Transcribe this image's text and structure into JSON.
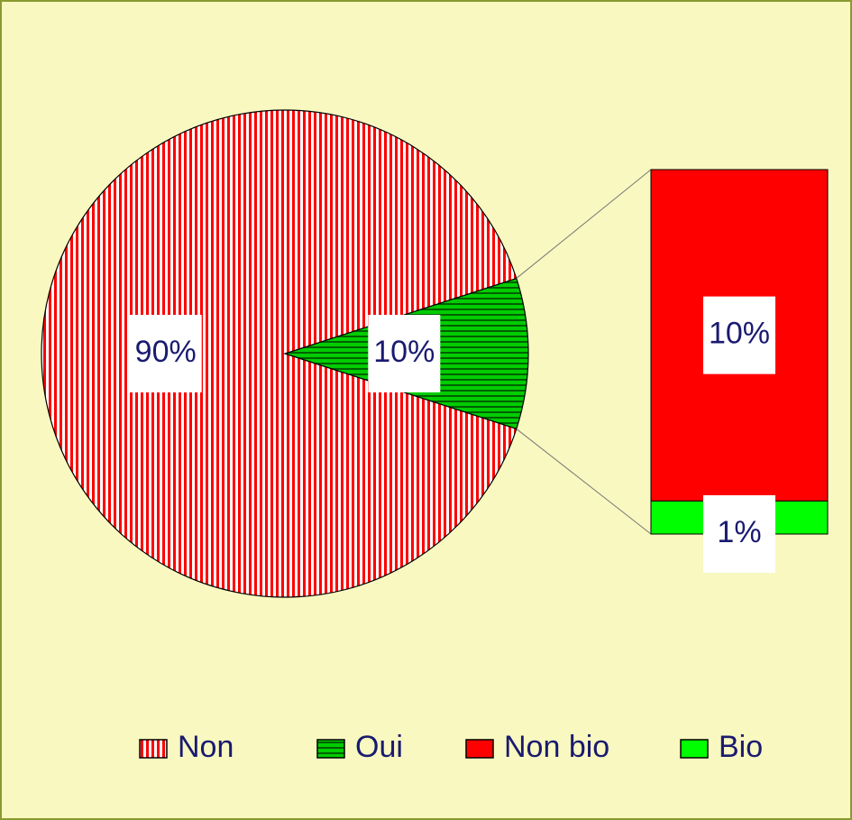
{
  "chart_data": {
    "type": "pie_of_bar",
    "categories": [
      "Non",
      "Oui"
    ],
    "values": [
      90,
      10
    ],
    "value_labels": [
      "90%",
      "10%"
    ],
    "colors": [
      "#ff0000",
      "#00cc00"
    ],
    "patterns": [
      "vertical",
      "horizontal"
    ],
    "breakdown": {
      "type": "bar",
      "categories": [
        "Non bio",
        "Bio"
      ],
      "values": [
        10,
        1
      ],
      "value_labels": [
        "10%",
        "1%"
      ],
      "colors": [
        "#ff0000",
        "#00ff00"
      ]
    },
    "legend": "bottom"
  }
}
